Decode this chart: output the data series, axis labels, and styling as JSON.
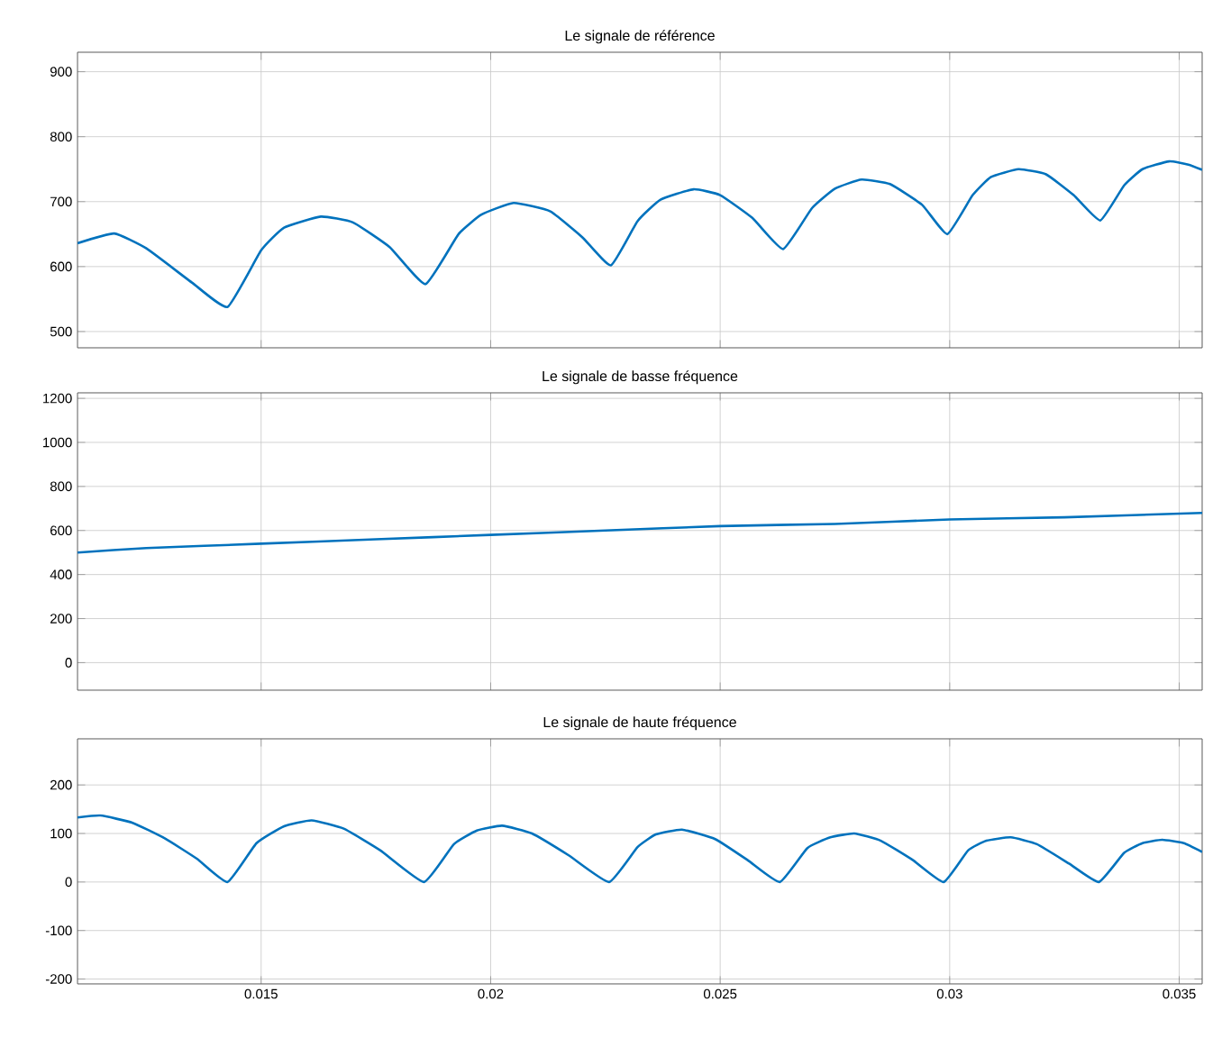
{
  "chart_data": [
    {
      "type": "line",
      "title": "Le signale de référence",
      "color": "#0072bd",
      "grid": true,
      "tick_labels": "y",
      "x": [
        0.011,
        0.0118,
        0.0125,
        0.0135,
        0.01427,
        0.015,
        0.0155,
        0.0163,
        0.017,
        0.0178,
        0.01858,
        0.0193,
        0.0198,
        0.0205,
        0.0213,
        0.022,
        0.02262,
        0.0232,
        0.0237,
        0.02442,
        0.025,
        0.0257,
        0.02637,
        0.027,
        0.0275,
        0.02808,
        0.0287,
        0.0294,
        0.02995,
        0.0305,
        0.0309,
        0.0315,
        0.0321,
        0.0327,
        0.03328,
        0.0338,
        0.0342,
        0.03478,
        0.0352,
        0.0355
      ],
      "values": [
        636,
        651,
        628,
        575,
        538,
        625,
        660,
        677,
        668,
        630,
        573,
        650,
        680,
        698,
        685,
        645,
        602,
        670,
        703,
        719,
        710,
        675,
        627,
        690,
        720,
        734,
        727,
        695,
        650,
        710,
        738,
        750,
        742,
        710,
        671,
        725,
        750,
        762,
        757,
        749
      ],
      "xlim": [
        0.011,
        0.0355
      ],
      "xticks": [
        0.015,
        0.02,
        0.025,
        0.03,
        0.035
      ],
      "ylim": [
        475,
        930
      ],
      "yticks": [
        500,
        600,
        700,
        800,
        900
      ]
    },
    {
      "type": "line",
      "title": "Le signale de basse fréquence",
      "color": "#0072bd",
      "grid": true,
      "tick_labels": "y",
      "x": [
        0.011,
        0.0125,
        0.015,
        0.0175,
        0.02,
        0.0225,
        0.025,
        0.0275,
        0.03,
        0.0325,
        0.0355
      ],
      "values": [
        500,
        520,
        540,
        560,
        580,
        600,
        620,
        630,
        650,
        660,
        680
      ],
      "xlim": [
        0.011,
        0.0355
      ],
      "xticks": [
        0.015,
        0.02,
        0.025,
        0.03,
        0.035
      ],
      "ylim": [
        -125,
        1225
      ],
      "yticks": [
        0,
        200,
        400,
        600,
        800,
        1000,
        1200
      ]
    },
    {
      "type": "line",
      "title": "Le signale de haute fréquence",
      "color": "#0072bd",
      "grid": true,
      "x": [
        0.011,
        0.0115,
        0.0122,
        0.0129,
        0.0136,
        0.01427,
        0.0149,
        0.0155,
        0.0161,
        0.0168,
        0.0176,
        0.01855,
        0.0192,
        0.0197,
        0.02025,
        0.0209,
        0.0217,
        0.02258,
        0.0232,
        0.0236,
        0.02417,
        0.0249,
        0.0256,
        0.0263,
        0.0269,
        0.0274,
        0.02792,
        0.0285,
        0.0292,
        0.02987,
        0.0304,
        0.0308,
        0.03133,
        0.0319,
        0.0326,
        0.03325,
        0.0338,
        0.0342,
        0.03463,
        0.0351,
        0.0355
      ],
      "values": [
        133,
        137,
        122,
        90,
        48,
        0,
        80,
        115,
        127,
        110,
        65,
        0,
        78,
        106,
        116,
        100,
        55,
        0,
        72,
        98,
        108,
        88,
        45,
        0,
        70,
        92,
        100,
        85,
        45,
        0,
        65,
        85,
        92,
        78,
        38,
        0,
        60,
        80,
        87,
        80,
        62
      ],
      "xlim": [
        0.011,
        0.0355
      ],
      "xticks": [
        0.015,
        0.02,
        0.025,
        0.03,
        0.035
      ],
      "ylim": [
        -210,
        295
      ],
      "yticks": [
        -200,
        -100,
        0,
        100,
        200
      ]
    }
  ]
}
